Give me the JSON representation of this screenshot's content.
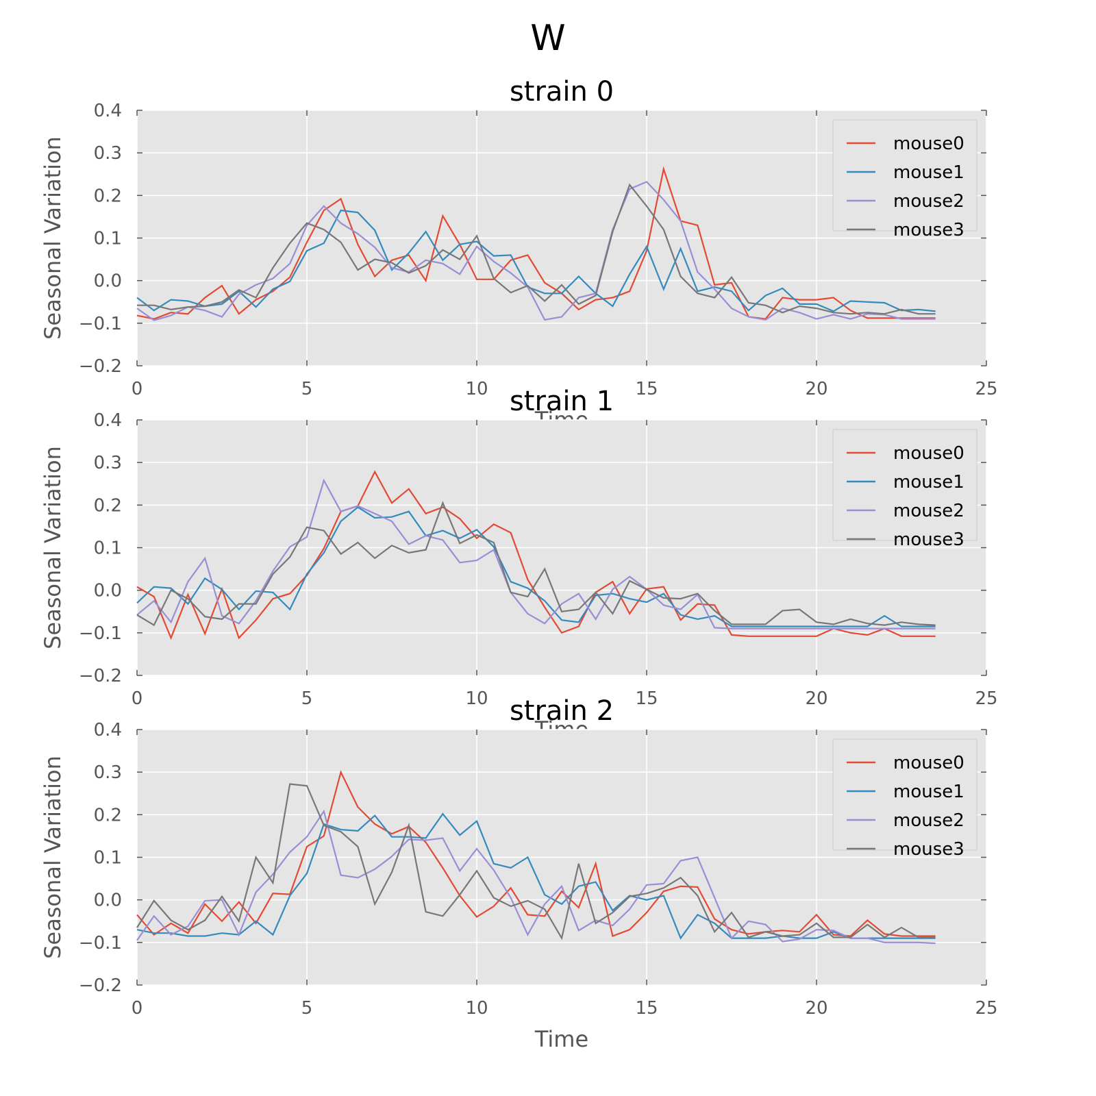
{
  "figure": {
    "title": "W"
  },
  "colors": {
    "background": "#E5E5E5",
    "grid": "#FFFFFF",
    "tick": "#555555",
    "series": [
      "#E24A33",
      "#348ABD",
      "#988ED5",
      "#777777"
    ]
  },
  "chart_data": [
    {
      "type": "line",
      "title": "strain 0",
      "xlabel": "Time",
      "ylabel": "Seasonal Variation",
      "xlim": [
        0,
        25
      ],
      "ylim": [
        -0.2,
        0.4
      ],
      "xticks": [
        "0",
        "5",
        "10",
        "15",
        "20",
        "25"
      ],
      "yticks": [
        "0.4",
        "0.3",
        "0.2",
        "0.1",
        "0.0",
        "−0.1",
        "−0.2"
      ],
      "grid": true,
      "legend_position": "top-right",
      "x": [
        0,
        0.5,
        1,
        1.5,
        2,
        2.5,
        3,
        3.5,
        4,
        4.5,
        5,
        5.5,
        6,
        6.5,
        7,
        7.5,
        8,
        8.5,
        9,
        9.5,
        10,
        10.5,
        11,
        11.5,
        12,
        12.5,
        13,
        13.5,
        14,
        14.5,
        15,
        15.5,
        16,
        16.5,
        17,
        17.5,
        18,
        18.5,
        19,
        19.5,
        20,
        20.5,
        21,
        21.5,
        22,
        22.5,
        23,
        23.5
      ],
      "series": [
        {
          "name": "mouse0",
          "values": [
            -0.082,
            -0.09,
            -0.075,
            -0.078,
            -0.04,
            -0.012,
            -0.078,
            -0.045,
            -0.025,
            0.008,
            0.09,
            0.165,
            0.192,
            0.085,
            0.01,
            0.048,
            0.06,
            0.0,
            0.152,
            0.085,
            0.003,
            0.003,
            0.048,
            0.06,
            -0.005,
            -0.03,
            -0.068,
            -0.045,
            -0.04,
            -0.025,
            0.07,
            0.262,
            0.14,
            0.13,
            -0.01,
            -0.005,
            -0.085,
            -0.09,
            -0.04,
            -0.045,
            -0.045,
            -0.04,
            -0.07,
            -0.088,
            -0.088,
            -0.088,
            -0.088,
            -0.088
          ]
        },
        {
          "name": "mouse1",
          "values": [
            -0.04,
            -0.07,
            -0.045,
            -0.048,
            -0.06,
            -0.055,
            -0.025,
            -0.062,
            -0.02,
            -0.002,
            0.07,
            0.088,
            0.165,
            0.16,
            0.118,
            0.025,
            0.065,
            0.115,
            0.048,
            0.085,
            0.092,
            0.058,
            0.06,
            -0.015,
            -0.03,
            -0.03,
            0.01,
            -0.03,
            -0.06,
            0.015,
            0.08,
            -0.02,
            0.075,
            -0.025,
            -0.015,
            -0.025,
            -0.07,
            -0.035,
            -0.018,
            -0.055,
            -0.055,
            -0.072,
            -0.048,
            -0.05,
            -0.052,
            -0.07,
            -0.068,
            -0.072
          ]
        },
        {
          "name": "mouse2",
          "values": [
            -0.065,
            -0.093,
            -0.082,
            -0.062,
            -0.07,
            -0.085,
            -0.032,
            -0.01,
            0.005,
            0.04,
            0.13,
            0.175,
            0.135,
            0.11,
            0.078,
            0.03,
            0.02,
            0.048,
            0.04,
            0.015,
            0.08,
            0.045,
            0.018,
            -0.015,
            -0.092,
            -0.085,
            -0.04,
            -0.03,
            0.12,
            0.215,
            0.232,
            0.19,
            0.14,
            0.02,
            -0.02,
            -0.065,
            -0.085,
            -0.092,
            -0.065,
            -0.075,
            -0.09,
            -0.08,
            -0.09,
            -0.078,
            -0.08,
            -0.09,
            -0.09,
            -0.09
          ]
        },
        {
          "name": "mouse3",
          "values": [
            -0.058,
            -0.058,
            -0.068,
            -0.062,
            -0.06,
            -0.05,
            -0.022,
            -0.04,
            0.03,
            0.088,
            0.135,
            0.12,
            0.09,
            0.025,
            0.05,
            0.042,
            0.018,
            0.035,
            0.072,
            0.05,
            0.105,
            0.005,
            -0.028,
            -0.012,
            -0.048,
            -0.01,
            -0.055,
            -0.035,
            0.115,
            0.225,
            0.175,
            0.12,
            0.01,
            -0.03,
            -0.04,
            0.008,
            -0.052,
            -0.058,
            -0.075,
            -0.06,
            -0.065,
            -0.075,
            -0.078,
            -0.075,
            -0.078,
            -0.068,
            -0.078,
            -0.078
          ]
        }
      ]
    },
    {
      "type": "line",
      "title": "strain 1",
      "xlabel": "Time",
      "ylabel": "Seasonal Variation",
      "xlim": [
        0,
        25
      ],
      "ylim": [
        -0.2,
        0.4
      ],
      "xticks": [
        "0",
        "5",
        "10",
        "15",
        "20",
        "25"
      ],
      "yticks": [
        "0.4",
        "0.3",
        "0.2",
        "0.1",
        "0.0",
        "−0.1",
        "−0.2"
      ],
      "grid": true,
      "legend_position": "top-right",
      "x": [
        0,
        0.5,
        1,
        1.5,
        2,
        2.5,
        3,
        3.5,
        4,
        4.5,
        5,
        5.5,
        6,
        6.5,
        7,
        7.5,
        8,
        8.5,
        9,
        9.5,
        10,
        10.5,
        11,
        11.5,
        12,
        12.5,
        13,
        13.5,
        14,
        14.5,
        15,
        15.5,
        16,
        16.5,
        17,
        17.5,
        18,
        18.5,
        19,
        19.5,
        20,
        20.5,
        21,
        21.5,
        22,
        22.5,
        23,
        23.5
      ],
      "series": [
        {
          "name": "mouse0",
          "values": [
            0.008,
            -0.015,
            -0.112,
            -0.01,
            -0.102,
            0.003,
            -0.112,
            -0.07,
            -0.02,
            -0.008,
            0.035,
            0.098,
            0.185,
            0.198,
            0.278,
            0.205,
            0.238,
            0.18,
            0.195,
            0.168,
            0.122,
            0.155,
            0.135,
            0.025,
            -0.04,
            -0.1,
            -0.085,
            -0.005,
            0.02,
            -0.055,
            0.003,
            0.008,
            -0.07,
            -0.032,
            -0.035,
            -0.105,
            -0.108,
            -0.108,
            -0.108,
            -0.108,
            -0.108,
            -0.09,
            -0.1,
            -0.105,
            -0.09,
            -0.108,
            -0.108,
            -0.108
          ]
        },
        {
          "name": "mouse1",
          "values": [
            -0.03,
            0.008,
            0.005,
            -0.032,
            0.028,
            0.002,
            -0.045,
            -0.002,
            -0.005,
            -0.045,
            0.038,
            0.088,
            0.162,
            0.195,
            0.17,
            0.172,
            0.185,
            0.128,
            0.14,
            0.122,
            0.142,
            0.102,
            0.02,
            0.005,
            -0.025,
            -0.07,
            -0.075,
            -0.012,
            -0.008,
            -0.02,
            -0.028,
            -0.008,
            -0.058,
            -0.068,
            -0.06,
            -0.085,
            -0.085,
            -0.085,
            -0.085,
            -0.085,
            -0.085,
            -0.085,
            -0.085,
            -0.085,
            -0.06,
            -0.085,
            -0.085,
            -0.085
          ]
        },
        {
          "name": "mouse2",
          "values": [
            -0.058,
            -0.025,
            -0.075,
            0.02,
            0.075,
            -0.06,
            -0.078,
            -0.025,
            0.045,
            0.102,
            0.125,
            0.258,
            0.185,
            0.198,
            0.18,
            0.162,
            0.108,
            0.128,
            0.118,
            0.065,
            0.07,
            0.095,
            -0.005,
            -0.055,
            -0.078,
            -0.032,
            -0.008,
            -0.068,
            0.002,
            0.032,
            0.002,
            -0.035,
            -0.045,
            -0.01,
            -0.088,
            -0.09,
            -0.09,
            -0.09,
            -0.09,
            -0.09,
            -0.09,
            -0.09,
            -0.09,
            -0.09,
            -0.09,
            -0.09,
            -0.09,
            -0.09
          ]
        },
        {
          "name": "mouse3",
          "values": [
            -0.058,
            -0.082,
            0.0,
            -0.02,
            -0.062,
            -0.068,
            -0.032,
            -0.032,
            0.038,
            0.078,
            0.148,
            0.14,
            0.085,
            0.112,
            0.075,
            0.105,
            0.088,
            0.095,
            0.205,
            0.11,
            0.13,
            0.112,
            -0.005,
            -0.015,
            0.05,
            -0.05,
            -0.045,
            -0.005,
            -0.055,
            0.022,
            0.002,
            -0.018,
            -0.02,
            -0.008,
            -0.048,
            -0.08,
            -0.08,
            -0.08,
            -0.048,
            -0.045,
            -0.075,
            -0.08,
            -0.068,
            -0.078,
            -0.082,
            -0.075,
            -0.08,
            -0.082
          ]
        }
      ]
    },
    {
      "type": "line",
      "title": "strain 2",
      "xlabel": "Time",
      "ylabel": "Seasonal Variation",
      "xlim": [
        0,
        25
      ],
      "ylim": [
        -0.2,
        0.4
      ],
      "xticks": [
        "0",
        "5",
        "10",
        "15",
        "20",
        "25"
      ],
      "yticks": [
        "0.4",
        "0.3",
        "0.2",
        "0.1",
        "0.0",
        "−0.1",
        "−0.2"
      ],
      "grid": true,
      "legend_position": "top-right",
      "x": [
        0,
        0.5,
        1,
        1.5,
        2,
        2.5,
        3,
        3.5,
        4,
        4.5,
        5,
        5.5,
        6,
        6.5,
        7,
        7.5,
        8,
        8.5,
        9,
        9.5,
        10,
        10.5,
        11,
        11.5,
        12,
        12.5,
        13,
        13.5,
        14,
        14.5,
        15,
        15.5,
        16,
        16.5,
        17,
        17.5,
        18,
        18.5,
        19,
        19.5,
        20,
        20.5,
        21,
        21.5,
        22,
        22.5,
        23,
        23.5
      ],
      "series": [
        {
          "name": "mouse0",
          "values": [
            -0.035,
            -0.082,
            -0.055,
            -0.078,
            -0.01,
            -0.05,
            -0.005,
            -0.055,
            0.015,
            0.013,
            0.125,
            0.15,
            0.3,
            0.218,
            0.178,
            0.155,
            0.172,
            0.135,
            0.075,
            0.01,
            -0.04,
            -0.015,
            0.028,
            -0.035,
            -0.038,
            0.02,
            -0.018,
            0.085,
            -0.085,
            -0.07,
            -0.03,
            0.02,
            0.032,
            0.03,
            -0.045,
            -0.07,
            -0.08,
            -0.075,
            -0.072,
            -0.075,
            -0.035,
            -0.082,
            -0.085,
            -0.048,
            -0.08,
            -0.085,
            -0.085,
            -0.085
          ]
        },
        {
          "name": "mouse1",
          "values": [
            -0.07,
            -0.078,
            -0.078,
            -0.085,
            -0.085,
            -0.078,
            -0.082,
            -0.05,
            -0.082,
            0.01,
            0.062,
            0.178,
            0.165,
            0.162,
            0.198,
            0.148,
            0.148,
            0.145,
            0.202,
            0.152,
            0.185,
            0.085,
            0.075,
            0.1,
            0.012,
            -0.01,
            0.032,
            0.042,
            -0.025,
            0.01,
            0.0,
            0.01,
            -0.09,
            -0.035,
            -0.055,
            -0.09,
            -0.09,
            -0.09,
            -0.085,
            -0.09,
            -0.09,
            -0.075,
            -0.09,
            -0.09,
            -0.09,
            -0.09,
            -0.09,
            -0.09
          ]
        },
        {
          "name": "mouse2",
          "values": [
            -0.095,
            -0.038,
            -0.082,
            -0.062,
            -0.002,
            0.0,
            -0.082,
            0.018,
            0.06,
            0.112,
            0.148,
            0.208,
            0.058,
            0.052,
            0.072,
            0.102,
            0.142,
            0.14,
            0.145,
            0.068,
            0.12,
            0.07,
            0.005,
            -0.082,
            -0.01,
            0.032,
            -0.072,
            -0.048,
            -0.06,
            -0.022,
            0.035,
            0.038,
            0.092,
            0.1,
            0.005,
            -0.09,
            -0.05,
            -0.058,
            -0.098,
            -0.092,
            -0.07,
            -0.072,
            -0.09,
            -0.09,
            -0.1,
            -0.1,
            -0.1,
            -0.102
          ]
        },
        {
          "name": "mouse3",
          "values": [
            -0.065,
            -0.002,
            -0.048,
            -0.07,
            -0.048,
            0.008,
            -0.05,
            0.1,
            0.04,
            0.272,
            0.268,
            0.175,
            0.16,
            0.125,
            -0.01,
            0.065,
            0.175,
            -0.028,
            -0.038,
            0.012,
            0.068,
            0.005,
            -0.015,
            -0.002,
            -0.022,
            -0.09,
            0.085,
            -0.055,
            -0.03,
            0.008,
            0.015,
            0.028,
            0.052,
            0.01,
            -0.075,
            -0.03,
            -0.088,
            -0.075,
            -0.085,
            -0.082,
            -0.055,
            -0.088,
            -0.088,
            -0.058,
            -0.088,
            -0.065,
            -0.088,
            -0.088
          ]
        }
      ]
    }
  ]
}
